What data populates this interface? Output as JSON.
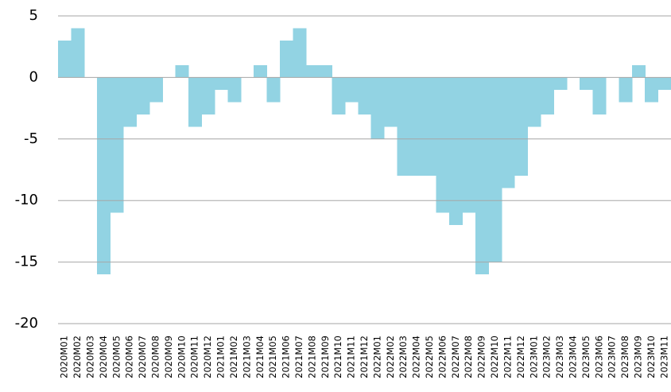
{
  "chart_data": {
    "type": "area",
    "categories": [
      "2020M01",
      "2020M02",
      "2020M03",
      "2020M04",
      "2020M05",
      "2020M06",
      "2020M07",
      "2020M08",
      "2020M09",
      "2020M10",
      "2020M11",
      "2020M12",
      "2021M01",
      "2021M02",
      "2021M03",
      "2021M04",
      "2021M05",
      "2021M06",
      "2021M07",
      "2021M08",
      "2021M09",
      "2021M10",
      "2021M11",
      "2021M12",
      "2022M01",
      "2022M02",
      "2022M03",
      "2022M04",
      "2022M05",
      "2022M06",
      "2022M07",
      "2022M08",
      "2022M09",
      "2022M10",
      "2022M11",
      "2022M12",
      "2023M01",
      "2023M02",
      "2023M03",
      "2023M04",
      "2023M05",
      "2023M06",
      "2023M07",
      "2023M08",
      "2023M09",
      "2023M10",
      "2023M11"
    ],
    "values": [
      3,
      4,
      0,
      -16,
      -11,
      -4,
      -3,
      -2,
      0,
      1,
      -4,
      -3,
      -1,
      -2,
      0,
      1,
      -2,
      3,
      4,
      1,
      1,
      -3,
      -2,
      -3,
      -5,
      -4,
      -8,
      -8,
      -8,
      -11,
      -12,
      -11,
      -16,
      -15,
      -9,
      -8,
      -4,
      -3,
      -1,
      0,
      -1,
      -3,
      0,
      -2,
      1,
      -2,
      -1
    ],
    "color": "#92d3e3",
    "ylim": [
      -20,
      5
    ],
    "yticks": [
      -20,
      -15,
      -10,
      -5,
      0,
      5
    ],
    "grid": true
  }
}
